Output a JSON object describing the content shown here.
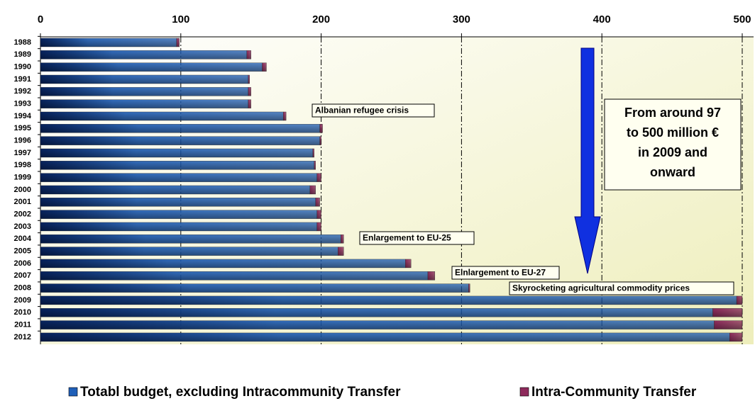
{
  "chart_data": {
    "type": "stacked-barh",
    "categories": [
      "1988",
      "1989",
      "1990",
      "1991",
      "1992",
      "1993",
      "1994",
      "1995",
      "1996",
      "1997",
      "1998",
      "1999",
      "2000",
      "2001",
      "2002",
      "2003",
      "2004",
      "2005",
      "2006",
      "2007",
      "2008",
      "2009",
      "2010",
      "2011",
      "2012"
    ],
    "series": [
      {
        "name": "Totabl budget, excluding Intracommunity Transfer",
        "color": "#1f5fb8",
        "values": [
          97,
          147,
          158,
          148,
          148,
          148,
          173,
          199,
          199,
          194,
          195,
          197,
          192,
          196,
          197,
          197,
          214,
          212,
          260,
          276,
          305,
          496,
          479,
          480,
          491
        ]
      },
      {
        "name": "Intra-Community Transfer",
        "color": "#8e2a5c",
        "values": [
          2,
          3,
          3,
          1,
          2,
          2,
          2,
          2,
          1,
          1,
          1,
          3,
          4,
          3,
          3,
          3,
          2,
          4,
          4,
          5,
          1,
          4,
          21,
          20,
          9
        ]
      }
    ],
    "xlim": [
      0,
      500
    ],
    "xticks": [
      0,
      100,
      200,
      300,
      400,
      500
    ],
    "grid": true,
    "annotations": [
      "Albanian refugee crisis",
      "Enlargement to EU-25",
      "Elnlargement to EU-27",
      "Skyrocketing agricultural commodity prices"
    ],
    "callout": [
      "From around 97",
      "to 500 million €",
      "in 2009 and",
      "onward"
    ]
  }
}
